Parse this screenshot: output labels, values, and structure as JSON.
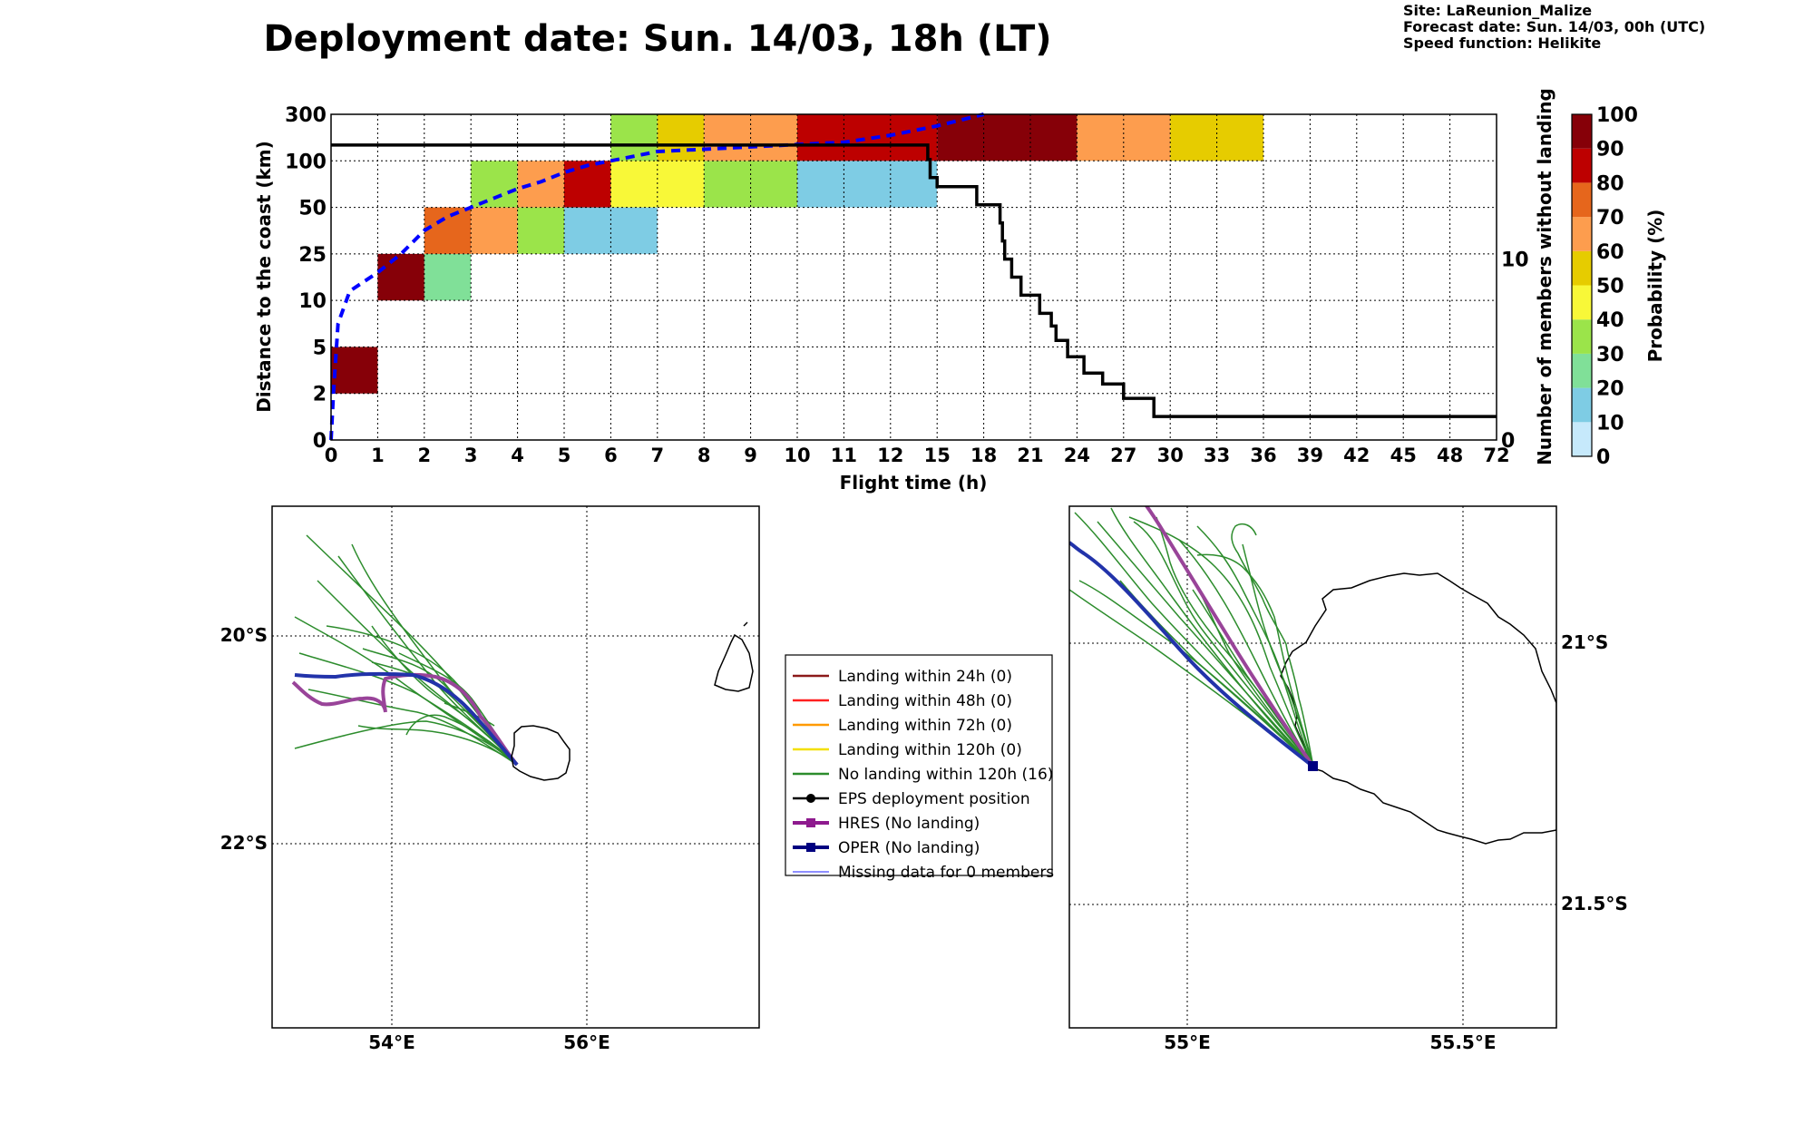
{
  "title": "Deployment date: Sun. 14/03, 18h (LT)",
  "info": {
    "site": "Site: LaReunion_Malize",
    "forecast": "Forecast date: Sun. 14/03, 00h (UTC)",
    "speed": "Speed function: Helikite"
  },
  "colorbar": {
    "label": "Probability (%)",
    "ticks": [
      "0",
      "10",
      "20",
      "30",
      "40",
      "50",
      "60",
      "70",
      "80",
      "90",
      "100"
    ],
    "colors": [
      "#c6e9fb",
      "#7ecce4",
      "#80e098",
      "#9be44a",
      "#f8f838",
      "#e6cc00",
      "#fd9d4e",
      "#e6661c",
      "#bd0000",
      "#860008"
    ]
  },
  "chart_data": [
    {
      "type": "heatmap",
      "xlabel": "Flight time (h)",
      "ylabel": "Distance to the coast (km)",
      "y2label": "Number of members without landing",
      "x_ticks": [
        "0",
        "1",
        "2",
        "3",
        "4",
        "5",
        "6",
        "7",
        "8",
        "9",
        "10",
        "11",
        "12",
        "15",
        "18",
        "21",
        "24",
        "27",
        "30",
        "33",
        "36",
        "39",
        "42",
        "45",
        "48",
        "72"
      ],
      "y_ticks": [
        "0",
        "2",
        "5",
        "10",
        "25",
        "50",
        "100",
        "300"
      ],
      "y2_ticks": [
        "0",
        "10"
      ],
      "y2_range": [
        0,
        18
      ],
      "cells": [
        {
          "x0": 0,
          "x1": 1,
          "y0": 1,
          "y1": 2,
          "p": 95
        },
        {
          "x0": 1,
          "x1": 2,
          "y0": 3,
          "y1": 4,
          "p": 95
        },
        {
          "x0": 2,
          "x1": 3,
          "y0": 3,
          "y1": 4,
          "p": 20
        },
        {
          "x0": 2,
          "x1": 3,
          "y0": 4,
          "y1": 5,
          "p": 70
        },
        {
          "x0": 3,
          "x1": 4,
          "y0": 4,
          "y1": 5,
          "p": 60
        },
        {
          "x0": 3,
          "x1": 4,
          "y0": 5,
          "y1": 6,
          "p": 30
        },
        {
          "x0": 4,
          "x1": 5,
          "y0": 4,
          "y1": 5,
          "p": 30
        },
        {
          "x0": 4,
          "x1": 5,
          "y0": 5,
          "y1": 6,
          "p": 60
        },
        {
          "x0": 5,
          "x1": 7,
          "y0": 4,
          "y1": 5,
          "p": 15
        },
        {
          "x0": 5,
          "x1": 6,
          "y0": 5,
          "y1": 6,
          "p": 85
        },
        {
          "x0": 6,
          "x1": 8,
          "y0": 5,
          "y1": 6,
          "p": 45
        },
        {
          "x0": 6,
          "x1": 7,
          "y0": 6,
          "y1": 7,
          "p": 30
        },
        {
          "x0": 7,
          "x1": 8,
          "y0": 6,
          "y1": 7,
          "p": 55
        },
        {
          "x0": 8,
          "x1": 10,
          "y0": 5,
          "y1": 6,
          "p": 30
        },
        {
          "x0": 8,
          "x1": 10,
          "y0": 6,
          "y1": 7,
          "p": 60
        },
        {
          "x0": 10,
          "x1": 13,
          "y0": 5,
          "y1": 6,
          "p": 15
        },
        {
          "x0": 10,
          "x1": 13,
          "y0": 6,
          "y1": 7,
          "p": 85
        },
        {
          "x0": 13,
          "x1": 16,
          "y0": 6,
          "y1": 7,
          "p": 95
        },
        {
          "x0": 16,
          "x1": 18,
          "y0": 6,
          "y1": 7,
          "p": 60
        },
        {
          "x0": 18,
          "x1": 20,
          "y0": 6,
          "y1": 7,
          "p": 55
        }
      ],
      "median_distance": {
        "x": [
          0,
          0.05,
          0.15,
          0.4,
          0.7,
          1,
          1.5,
          2,
          2.5,
          3,
          3.5,
          4,
          4.5,
          5,
          5.5,
          6,
          6.5,
          7,
          8,
          9,
          10,
          11,
          12,
          13,
          14
        ],
        "y": [
          0,
          1,
          2.5,
          3.2,
          3.4,
          3.6,
          4.0,
          4.5,
          4.8,
          5.0,
          5.2,
          5.4,
          5.55,
          5.75,
          5.9,
          6.0,
          6.1,
          6.2,
          6.25,
          6.3,
          6.35,
          6.4,
          6.55,
          6.75,
          7.0
        ]
      },
      "members_without_landing": {
        "x": [
          0,
          12.75,
          12.8,
          12.85,
          13,
          13.85,
          14.35,
          14.4,
          14.45,
          14.6,
          14.8,
          15.2,
          15.45,
          15.55,
          15.8,
          16.15,
          16.55,
          17.0,
          17.65,
          18.85,
          25
        ],
        "y": [
          16.3,
          16.3,
          15.5,
          14.5,
          14,
          13,
          12,
          11,
          10,
          9,
          8,
          7,
          6.3,
          5.5,
          4.6,
          3.7,
          3.1,
          2.3,
          1.3,
          1.3,
          1.3
        ]
      }
    },
    {
      "type": "map",
      "lon_ticks": [
        "54°E",
        "56°E"
      ],
      "lat_ticks": [
        "20°S",
        "22°S"
      ],
      "lon_range": [
        52.8,
        57.8
      ],
      "lat_range": [
        -19.0,
        -23.9
      ],
      "grid": true
    },
    {
      "type": "map",
      "lon_ticks": [
        "55°E",
        "55.5°E"
      ],
      "lat_ticks": [
        "21°S",
        "21.5°S"
      ],
      "lon_range": [
        54.75,
        55.78
      ],
      "lat_range": [
        -20.77,
        -21.72
      ],
      "grid": true
    }
  ],
  "legend": {
    "items": [
      {
        "label": "Landing within 24h (0)",
        "color": "#8b1a1a",
        "kind": "line"
      },
      {
        "label": "Landing within 48h (0)",
        "color": "#ff2020",
        "kind": "line"
      },
      {
        "label": "Landing within 72h (0)",
        "color": "#ff9a00",
        "kind": "line"
      },
      {
        "label": "Landing within 120h (0)",
        "color": "#f3e000",
        "kind": "line"
      },
      {
        "label": "No landing within 120h (16)",
        "color": "#2c8c2c",
        "kind": "line"
      },
      {
        "label": "EPS deployment position",
        "color": "#000000",
        "kind": "dot"
      },
      {
        "label": "HRES (No landing)",
        "color": "#8e1a8e",
        "kind": "square"
      },
      {
        "label": "OPER (No landing)",
        "color": "#000080",
        "kind": "square"
      },
      {
        "label": "Missing data for 0 members",
        "color": "#4a4aff",
        "kind": "thin"
      }
    ]
  }
}
